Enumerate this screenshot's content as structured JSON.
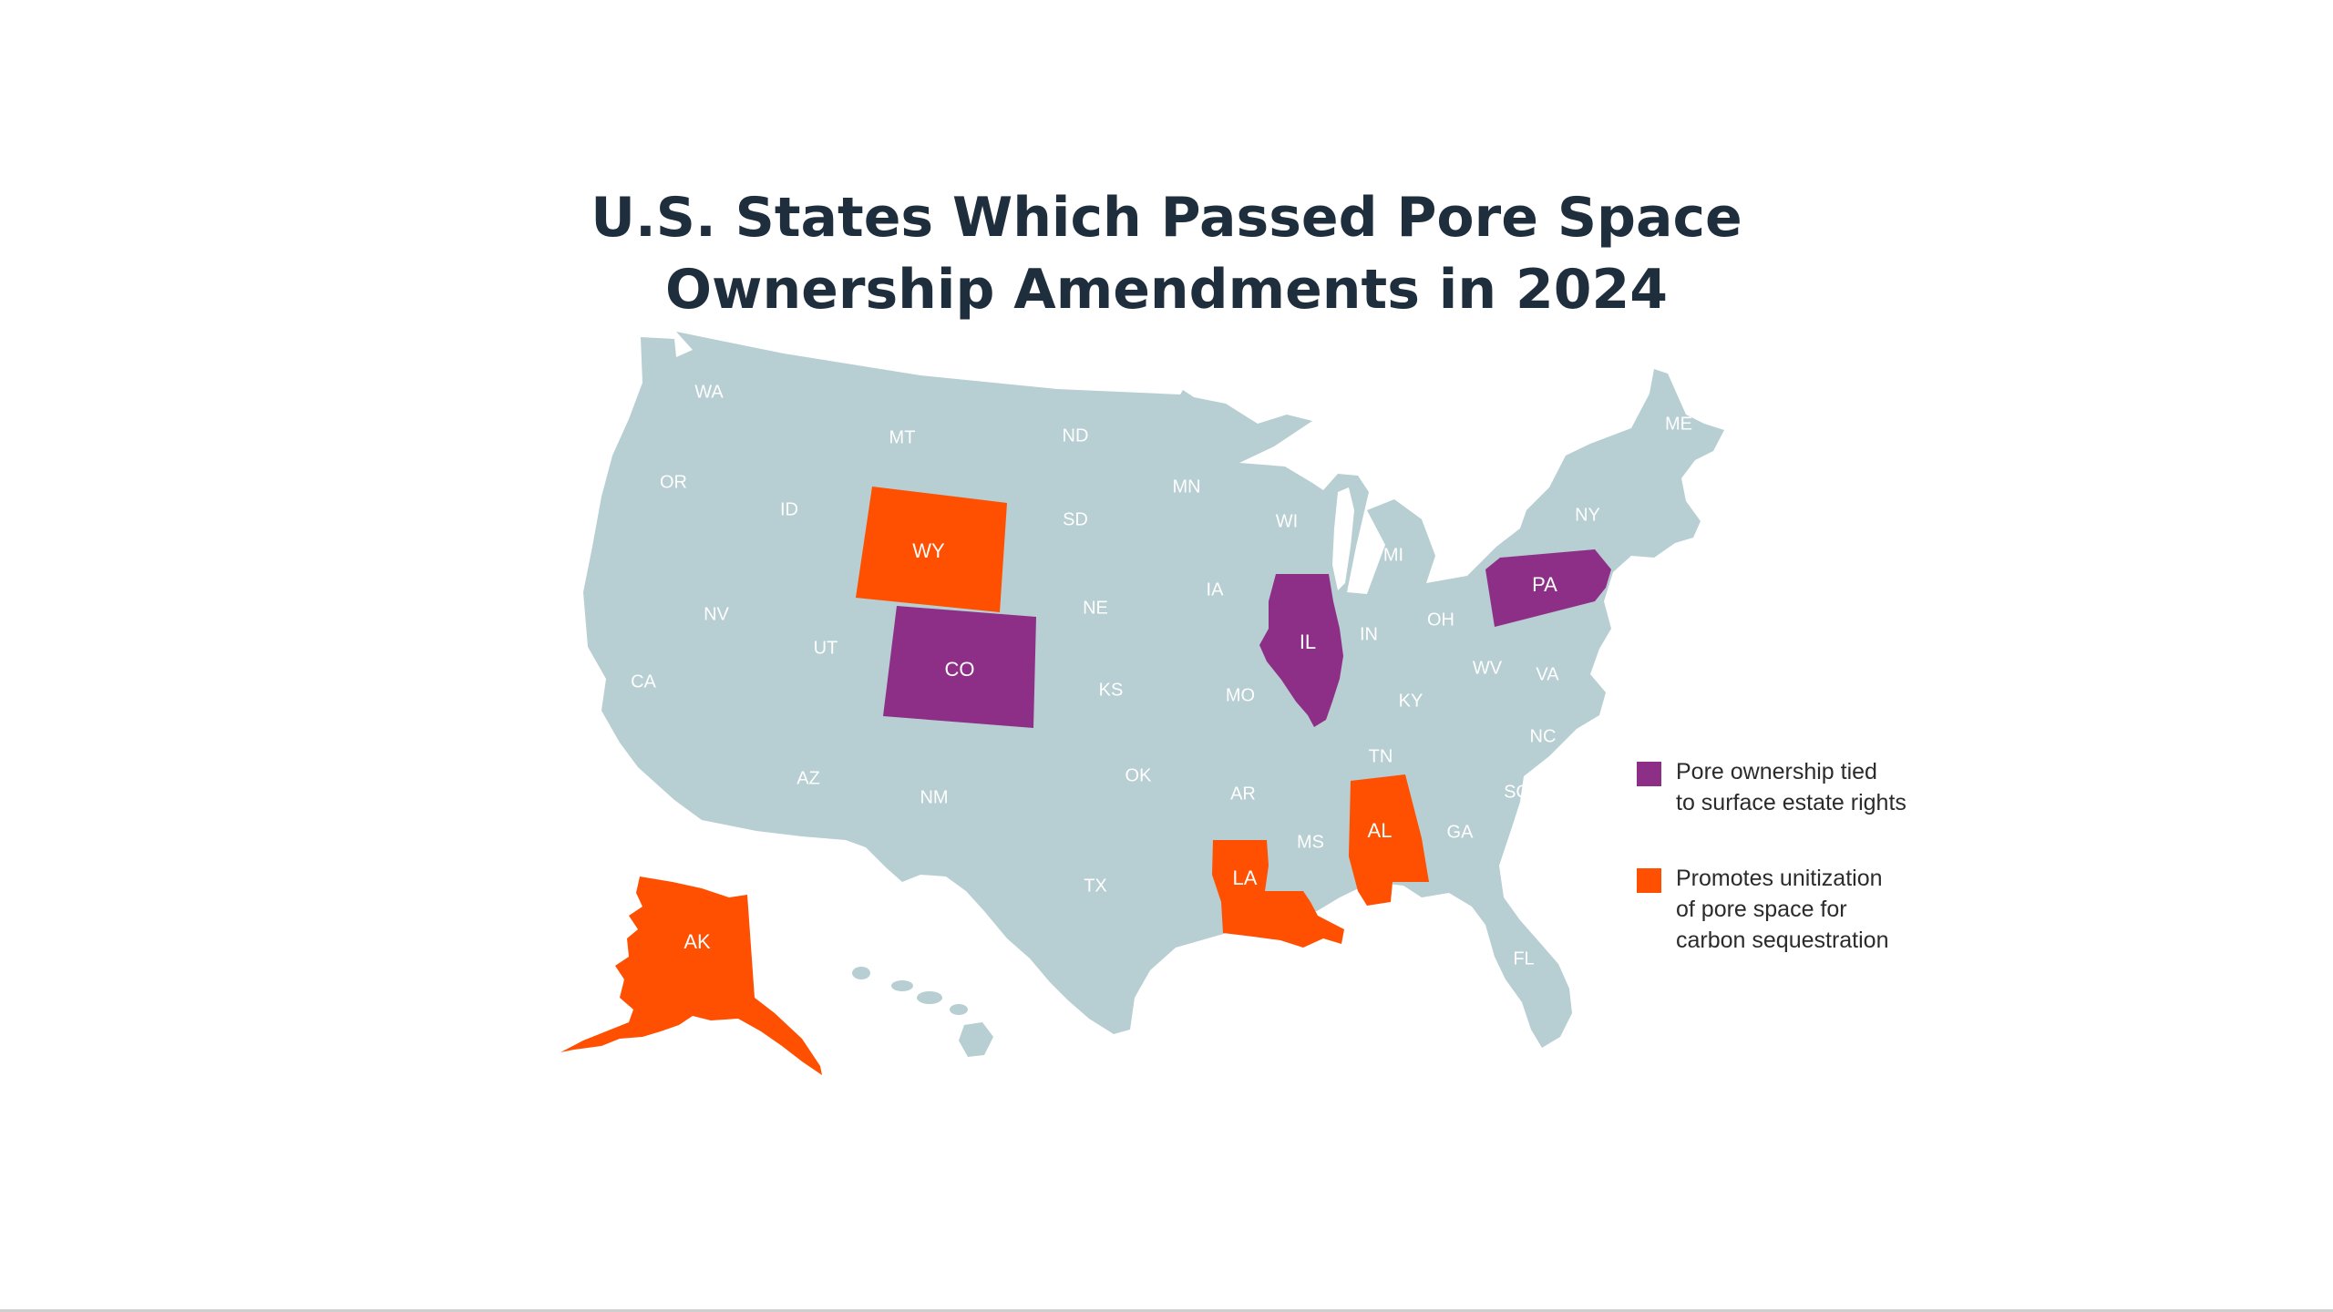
{
  "title_lines": [
    "U.S. States Which Passed Pore Space",
    "Ownership Amendments in 2024"
  ],
  "colors": {
    "base": "#b7ced2",
    "surface_estate": "#8e2f87",
    "unitization": "#ff4f00",
    "title": "#1f2e3d",
    "label": "#ffffff"
  },
  "legend": [
    {
      "category": "surface_estate",
      "lines": [
        "Pore ownership tied",
        "to surface estate rights"
      ]
    },
    {
      "category": "unitization",
      "lines": [
        "Promotes unitization",
        "of pore space for",
        "carbon sequestration"
      ]
    }
  ],
  "states": [
    {
      "abbr": "WA",
      "category": "none"
    },
    {
      "abbr": "OR",
      "category": "none"
    },
    {
      "abbr": "ID",
      "category": "none"
    },
    {
      "abbr": "MT",
      "category": "none"
    },
    {
      "abbr": "ND",
      "category": "none"
    },
    {
      "abbr": "MN",
      "category": "none"
    },
    {
      "abbr": "SD",
      "category": "none"
    },
    {
      "abbr": "WY",
      "category": "unitization"
    },
    {
      "abbr": "NV",
      "category": "none"
    },
    {
      "abbr": "UT",
      "category": "none"
    },
    {
      "abbr": "CO",
      "category": "surface_estate"
    },
    {
      "abbr": "CA",
      "category": "none"
    },
    {
      "abbr": "NE",
      "category": "none"
    },
    {
      "abbr": "IA",
      "category": "none"
    },
    {
      "abbr": "WI",
      "category": "none"
    },
    {
      "abbr": "MI",
      "category": "none"
    },
    {
      "abbr": "IL",
      "category": "surface_estate"
    },
    {
      "abbr": "IN",
      "category": "none"
    },
    {
      "abbr": "OH",
      "category": "none"
    },
    {
      "abbr": "PA",
      "category": "surface_estate"
    },
    {
      "abbr": "NY",
      "category": "none"
    },
    {
      "abbr": "ME",
      "category": "none"
    },
    {
      "abbr": "KS",
      "category": "none"
    },
    {
      "abbr": "MO",
      "category": "none"
    },
    {
      "abbr": "KY",
      "category": "none"
    },
    {
      "abbr": "WV",
      "category": "none"
    },
    {
      "abbr": "VA",
      "category": "none"
    },
    {
      "abbr": "NC",
      "category": "none"
    },
    {
      "abbr": "TN",
      "category": "none"
    },
    {
      "abbr": "SC",
      "category": "none"
    },
    {
      "abbr": "AZ",
      "category": "none"
    },
    {
      "abbr": "NM",
      "category": "none"
    },
    {
      "abbr": "OK",
      "category": "none"
    },
    {
      "abbr": "AR",
      "category": "none"
    },
    {
      "abbr": "MS",
      "category": "none"
    },
    {
      "abbr": "AL",
      "category": "unitization"
    },
    {
      "abbr": "GA",
      "category": "none"
    },
    {
      "abbr": "TX",
      "category": "none"
    },
    {
      "abbr": "LA",
      "category": "unitization"
    },
    {
      "abbr": "FL",
      "category": "none"
    },
    {
      "abbr": "AK",
      "category": "unitization"
    }
  ]
}
